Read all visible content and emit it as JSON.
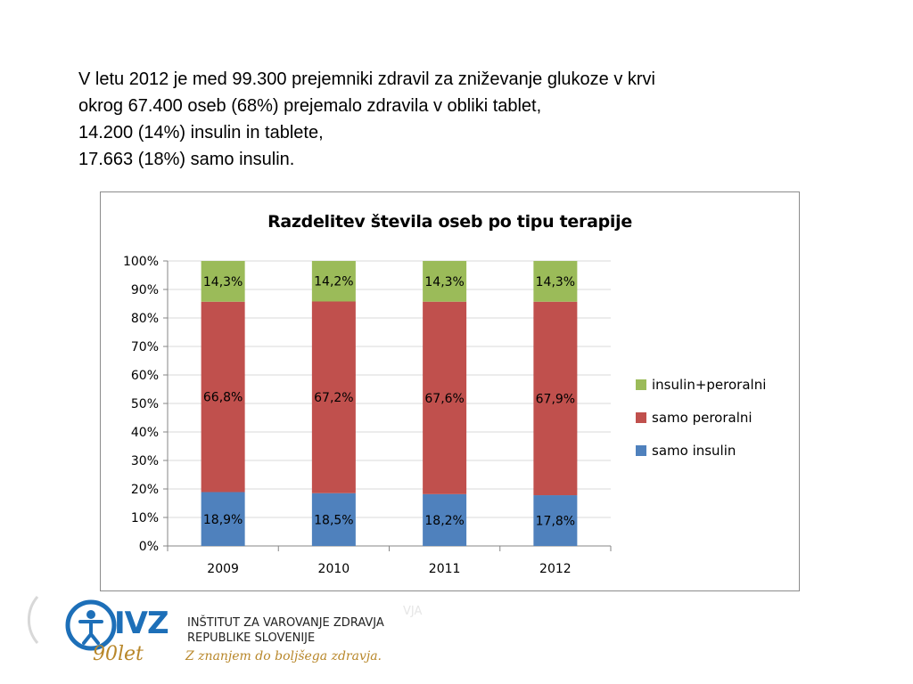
{
  "intro": {
    "line1": "V letu 2012 je med 99.300 prejemniki zdravil za zniževanje glukoze v krvi",
    "line2": "okrog 67.400 oseb (68%) prejemalo zdravila v obliki tablet,",
    "line3": "14.200 (14%) insulin in tablete,",
    "line4": "17.663 (18%) samo insulin."
  },
  "chart_data": {
    "type": "bar",
    "stacked": true,
    "title": "Razdelitev  števila oseb po tipu terapije",
    "categories": [
      "2009",
      "2010",
      "2011",
      "2012"
    ],
    "y_ticks": [
      "0%",
      "10%",
      "20%",
      "30%",
      "40%",
      "50%",
      "60%",
      "70%",
      "80%",
      "90%",
      "100%"
    ],
    "ylim": [
      0,
      100
    ],
    "grid": true,
    "legend_position": "right",
    "series": [
      {
        "name": "samo insulin",
        "color": "#4f81bd",
        "values": [
          18.9,
          18.5,
          18.2,
          17.8
        ],
        "labels": [
          "18,9%",
          "18,5%",
          "18,2%",
          "17,8%"
        ]
      },
      {
        "name": "samo peroralni",
        "color": "#c0504d",
        "values": [
          66.8,
          67.2,
          67.6,
          67.9
        ],
        "labels": [
          "66,8%",
          "67,2%",
          "67,6%",
          "67,9%"
        ]
      },
      {
        "name": "insulin+peroralni",
        "color": "#9bbb59",
        "values": [
          14.3,
          14.2,
          14.3,
          14.3
        ],
        "labels": [
          "14,3%",
          "14,2%",
          "14,3%",
          "14,3%"
        ]
      }
    ],
    "legend_order": [
      "insulin+peroralni",
      "samo peroralni",
      "samo insulin"
    ]
  },
  "footer": {
    "logo_text": "IVZ",
    "anniversary": "90let",
    "org_line1": "INŠTITUT ZA VAROVANJE ZDRAVJA",
    "org_line2": "REPUBLIKE SLOVENIJE",
    "slogan": "Z znanjem do boljšega zdravja.",
    "ghost_text": "VJA",
    "brand_color": "#1d6fb8",
    "accent_color": "#b8872a"
  }
}
